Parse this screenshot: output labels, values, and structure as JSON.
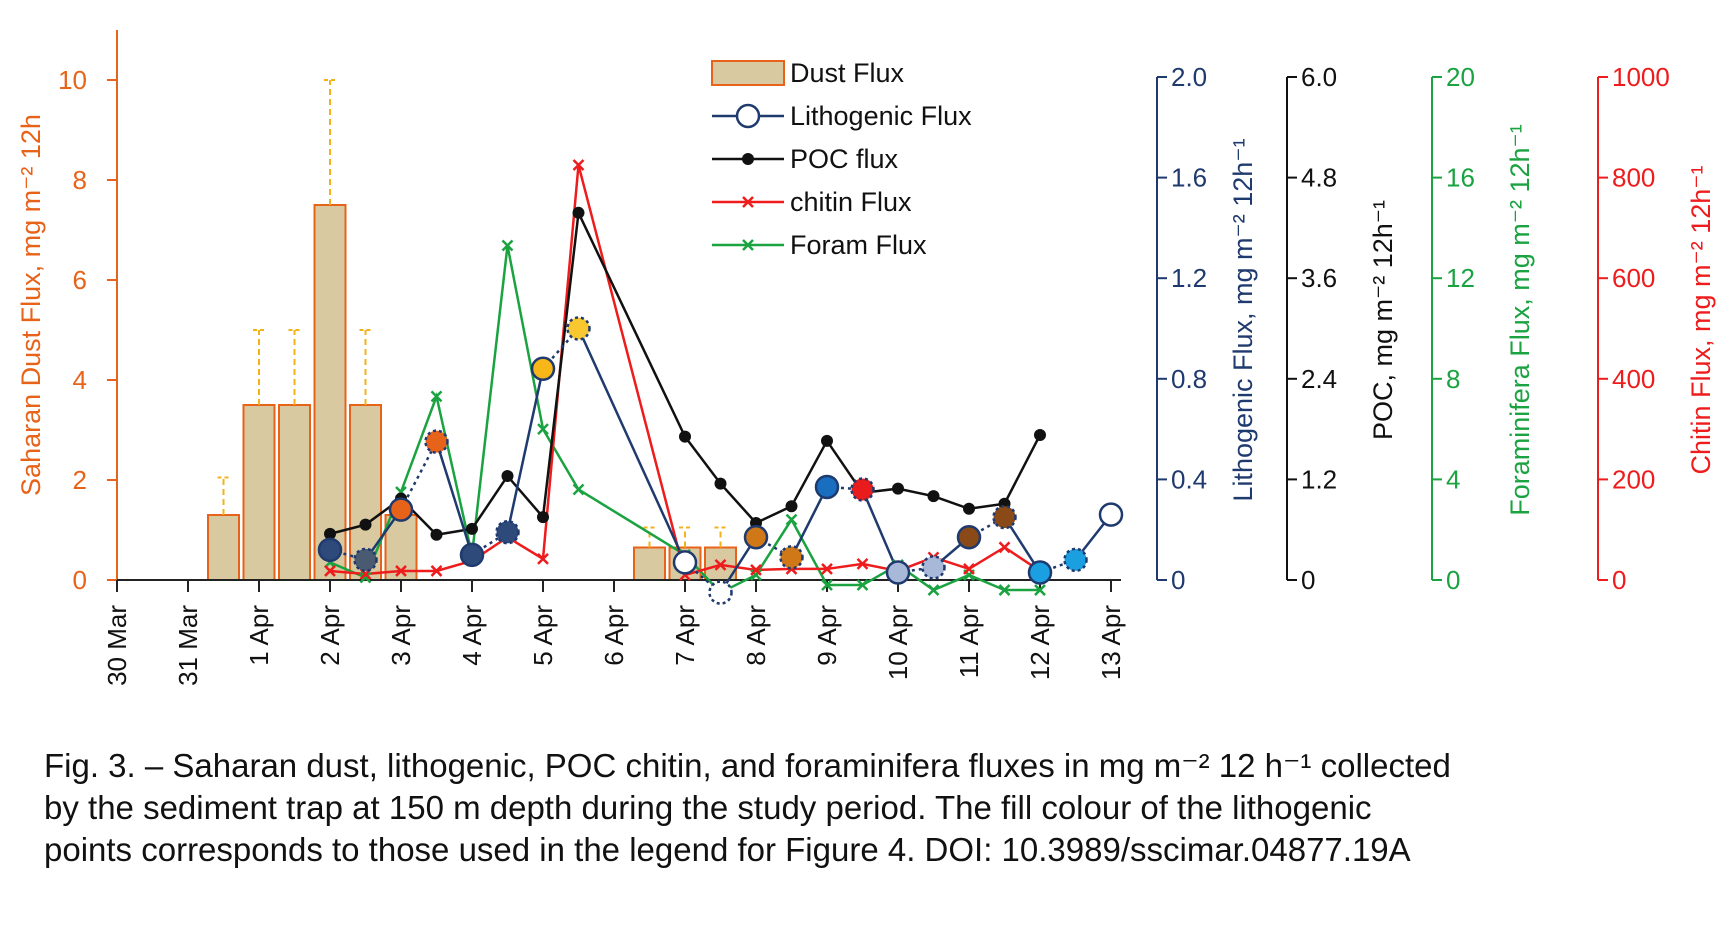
{
  "chart_data": {
    "type": "bar+line",
    "x_ticks": [
      "30 Mar",
      "31 Mar",
      "1 Apr",
      "2 Apr",
      "3 Apr",
      "4 Apr",
      "5 Apr",
      "6 Apr",
      "7 Apr",
      "8 Apr",
      "9 Apr",
      "10 Apr",
      "11 Apr",
      "12 Apr",
      "13 Apr"
    ],
    "axes": {
      "dust": {
        "label": "Saharan Dust Flux, mg m⁻² 12h",
        "ticks": [
          "0",
          "2",
          "4",
          "6",
          "8",
          "10"
        ],
        "range": [
          0,
          11
        ],
        "color": "#e8631a"
      },
      "lithogenic": {
        "label": "Lithogenic Flux, mg m⁻² 12h⁻¹",
        "ticks": [
          "0",
          "0.4",
          "0.8",
          "1.2",
          "1.6",
          "2.0"
        ],
        "range": [
          0,
          2.0
        ],
        "color": "#1f3a6e"
      },
      "poc": {
        "label": "POC, mg m⁻² 12h⁻¹",
        "ticks": [
          "0",
          "1.2",
          "2.4",
          "3.6",
          "4.8",
          "6.0"
        ],
        "range": [
          0,
          6.0
        ],
        "color": "#111111"
      },
      "foram": {
        "label": "Foraminifera Flux, mg m⁻² 12h⁻¹",
        "ticks": [
          "0",
          "4",
          "8",
          "12",
          "16",
          "20"
        ],
        "range": [
          0,
          20
        ],
        "color": "#1aa340"
      },
      "chitin": {
        "label": "Chitin Flux, mg m⁻² 12h⁻¹",
        "ticks": [
          "0",
          "200",
          "400",
          "600",
          "800",
          "1000"
        ],
        "range": [
          0,
          1000
        ],
        "color": "#ee1c1c"
      }
    },
    "legend": [
      "Dust Flux",
      "Lithogenic Flux",
      "POC flux",
      "chitin Flux",
      "Foram Flux"
    ],
    "legend_position": "top-center",
    "dust_bars": [
      {
        "x": 1.5,
        "value": 1.3,
        "err": 0.75
      },
      {
        "x": 2.0,
        "value": 3.5,
        "err": 1.5
      },
      {
        "x": 2.5,
        "value": 3.5,
        "err": 1.5
      },
      {
        "x": 3.0,
        "value": 7.5,
        "err": 2.5
      },
      {
        "x": 3.5,
        "value": 3.5,
        "err": 1.5
      },
      {
        "x": 4.0,
        "value": 1.3,
        "err": 0
      },
      {
        "x": 7.5,
        "value": 0.65,
        "err": 0.4
      },
      {
        "x": 8.0,
        "value": 0.65,
        "err": 0.4
      },
      {
        "x": 8.5,
        "value": 0.65,
        "err": 0.4
      }
    ],
    "lithogenic": [
      {
        "x": 3.0,
        "y": 0.12,
        "fill": "#2e4a7a",
        "dotted": false
      },
      {
        "x": 3.5,
        "y": 0.08,
        "fill": "#4a5a70",
        "dotted": true
      },
      {
        "x": 4.0,
        "y": 0.28,
        "fill": "#e8631a",
        "dotted": false
      },
      {
        "x": 4.5,
        "y": 0.55,
        "fill": "#e8631a",
        "dotted": true
      },
      {
        "x": 5.0,
        "y": 0.1,
        "fill": "#2e4a7a",
        "dotted": false
      },
      {
        "x": 5.5,
        "y": 0.19,
        "fill": "#2e4a7a",
        "dotted": true
      },
      {
        "x": 6.0,
        "y": 0.84,
        "fill": "#f7b718",
        "dotted": false
      },
      {
        "x": 6.5,
        "y": 1.0,
        "fill": "#f9c830",
        "dotted": true
      },
      {
        "x": 8.0,
        "y": 0.07,
        "fill": "#ffffff",
        "dotted": false
      },
      {
        "x": 8.5,
        "y": -0.05,
        "fill": "#ffffff",
        "dotted": true
      },
      {
        "x": 9.0,
        "y": 0.17,
        "fill": "#d07818",
        "dotted": false
      },
      {
        "x": 9.5,
        "y": 0.09,
        "fill": "#d07818",
        "dotted": true
      },
      {
        "x": 10.0,
        "y": 0.37,
        "fill": "#1a6ec0",
        "dotted": false
      },
      {
        "x": 10.5,
        "y": 0.36,
        "fill": "#e81c1c",
        "dotted": true
      },
      {
        "x": 11.0,
        "y": 0.03,
        "fill": "#a8b8d8",
        "dotted": false
      },
      {
        "x": 11.5,
        "y": 0.05,
        "fill": "#a8b8d8",
        "dotted": true
      },
      {
        "x": 12.0,
        "y": 0.17,
        "fill": "#8a4a18",
        "dotted": false
      },
      {
        "x": 12.5,
        "y": 0.25,
        "fill": "#8a4a18",
        "dotted": true
      },
      {
        "x": 13.0,
        "y": 0.03,
        "fill": "#1aa0e0",
        "dotted": false
      },
      {
        "x": 13.5,
        "y": 0.08,
        "fill": "#1aa0e0",
        "dotted": true
      },
      {
        "x": 14.0,
        "y": 0.26,
        "fill": "#ffffff",
        "dotted": false
      }
    ],
    "poc": [
      {
        "x": 3.0,
        "y": 0.55
      },
      {
        "x": 3.5,
        "y": 0.66
      },
      {
        "x": 4.0,
        "y": 0.97
      },
      {
        "x": 4.5,
        "y": 0.54
      },
      {
        "x": 5.0,
        "y": 0.61
      },
      {
        "x": 5.5,
        "y": 1.24
      },
      {
        "x": 6.0,
        "y": 0.75
      },
      {
        "x": 6.5,
        "y": 4.38
      },
      {
        "x": 8.0,
        "y": 1.71
      },
      {
        "x": 8.5,
        "y": 1.15
      },
      {
        "x": 9.0,
        "y": 0.68
      },
      {
        "x": 9.5,
        "y": 0.88
      },
      {
        "x": 10.0,
        "y": 1.66
      },
      {
        "x": 10.5,
        "y": 1.04
      },
      {
        "x": 11.0,
        "y": 1.09
      },
      {
        "x": 11.5,
        "y": 1.0
      },
      {
        "x": 12.0,
        "y": 0.85
      },
      {
        "x": 12.5,
        "y": 0.91
      },
      {
        "x": 13.0,
        "y": 1.73
      }
    ],
    "chitin": [
      {
        "x": 3.0,
        "y": 18
      },
      {
        "x": 3.5,
        "y": 12
      },
      {
        "x": 4.0,
        "y": 18
      },
      {
        "x": 4.5,
        "y": 18
      },
      {
        "x": 5.0,
        "y": 38
      },
      {
        "x": 5.5,
        "y": 85
      },
      {
        "x": 6.0,
        "y": 42
      },
      {
        "x": 6.5,
        "y": 825
      },
      {
        "x": 8.0,
        "y": 10
      },
      {
        "x": 8.5,
        "y": 30
      },
      {
        "x": 9.0,
        "y": 20
      },
      {
        "x": 9.5,
        "y": 22
      },
      {
        "x": 10.0,
        "y": 22
      },
      {
        "x": 10.5,
        "y": 32
      },
      {
        "x": 11.0,
        "y": 18
      },
      {
        "x": 11.5,
        "y": 45
      },
      {
        "x": 12.0,
        "y": 22
      },
      {
        "x": 12.5,
        "y": 65
      },
      {
        "x": 13.0,
        "y": 18
      }
    ],
    "foram": [
      {
        "x": 3.0,
        "y": 0.7
      },
      {
        "x": 3.5,
        "y": 0.1
      },
      {
        "x": 4.0,
        "y": 3.5
      },
      {
        "x": 4.5,
        "y": 7.3
      },
      {
        "x": 5.0,
        "y": 1.0
      },
      {
        "x": 5.5,
        "y": 13.3
      },
      {
        "x": 6.0,
        "y": 6.0
      },
      {
        "x": 6.5,
        "y": 3.6
      },
      {
        "x": 8.0,
        "y": 1.0
      },
      {
        "x": 8.5,
        "y": -0.5
      },
      {
        "x": 9.0,
        "y": 0.2
      },
      {
        "x": 9.5,
        "y": 2.4
      },
      {
        "x": 10.0,
        "y": -0.2
      },
      {
        "x": 10.5,
        "y": -0.2
      },
      {
        "x": 11.0,
        "y": 0.6
      },
      {
        "x": 11.5,
        "y": -0.4
      },
      {
        "x": 12.0,
        "y": 0.2
      },
      {
        "x": 12.5,
        "y": -0.4
      },
      {
        "x": 13.0,
        "y": -0.4
      }
    ]
  },
  "caption": {
    "line1": "Fig. 3. – Saharan dust, lithogenic, POC chitin, and foraminifera fluxes in mg m⁻² 12 h⁻¹ collected",
    "line2": "by the sediment trap at 150 m depth during the study period. The fill colour of the lithogenic",
    "line3": "points corresponds to those used in the legend for Figure 4. DOI: 10.3989/sscimar.04877.19A"
  }
}
